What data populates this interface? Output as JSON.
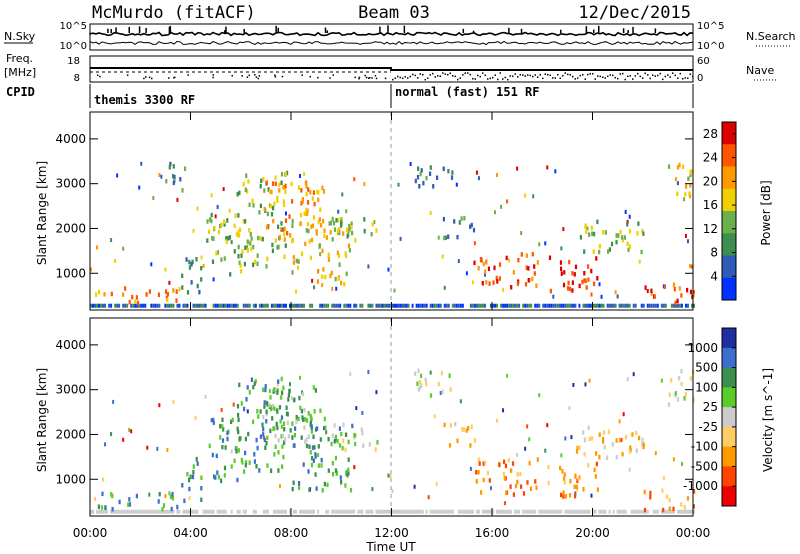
{
  "header": {
    "station": "McMurdo (fitACF)",
    "beam": "Beam 03",
    "date": "12/Dec/2015"
  },
  "summary_panels": {
    "nsky_label": "N.Sky",
    "nsky_ticks": [
      "10^5",
      "10^0"
    ],
    "nsearch_label": "N.Search",
    "nsearch_ticks": [
      "10^5",
      "10^0"
    ],
    "freq_label_1": "Freq.",
    "freq_label_2": "[MHz]",
    "freq_ticks": [
      "18",
      "8"
    ],
    "nave_label": "Nave",
    "nave_ticks": [
      "60",
      "0"
    ],
    "cpid_label": "CPID",
    "cpid_segments": [
      {
        "name": "themis 3300 RF",
        "start_hour": 0,
        "end_hour": 12
      },
      {
        "name": "normal (fast) 151 RF",
        "start_hour": 12,
        "end_hour": 24
      }
    ]
  },
  "chart_data": [
    {
      "type": "heatmap",
      "panel": "power",
      "ylabel": "Slant Range [km]",
      "y_ticks": [
        "1000",
        "2000",
        "3000",
        "4000"
      ],
      "ylim": [
        180,
        4600
      ],
      "xlim": [
        0,
        24
      ],
      "colorbar_label": "Power [dB]",
      "colorbar_ticks": [
        "4",
        "8",
        "12",
        "16",
        "20",
        "24",
        "28"
      ],
      "colorbar_range": [
        0,
        30
      ],
      "colors": [
        "#0033ff",
        "#2e5cb8",
        "#3d8f4f",
        "#6ab04c",
        "#f0d000",
        "#ff9900",
        "#ff5500",
        "#dd0000"
      ],
      "regions": [
        {
          "t0": 0.2,
          "t1": 3.6,
          "r0": 380,
          "r1": 750,
          "level": 22
        },
        {
          "t0": 3.6,
          "t1": 4.4,
          "r0": 500,
          "r1": 1500,
          "level": 10
        },
        {
          "t0": 2.9,
          "t1": 3.8,
          "r0": 2800,
          "r1": 3500,
          "level": 9
        },
        {
          "t0": 4.6,
          "t1": 6.0,
          "r0": 1000,
          "r1": 2400,
          "level": 12
        },
        {
          "t0": 5.8,
          "t1": 7.8,
          "r0": 1200,
          "r1": 3300,
          "level": 14
        },
        {
          "t0": 6.8,
          "t1": 9.3,
          "r0": 1800,
          "r1": 3100,
          "level": 20
        },
        {
          "t0": 8.0,
          "t1": 10.4,
          "r0": 800,
          "r1": 2400,
          "level": 16
        },
        {
          "t0": 9.6,
          "t1": 11.4,
          "r0": 1700,
          "r1": 2300,
          "level": 13
        },
        {
          "t0": 12.9,
          "t1": 14.4,
          "r0": 2900,
          "r1": 3500,
          "level": 11
        },
        {
          "t0": 14.0,
          "t1": 15.4,
          "r0": 1800,
          "r1": 2300,
          "level": 10
        },
        {
          "t0": 15.2,
          "t1": 17.8,
          "r0": 700,
          "r1": 1500,
          "level": 24
        },
        {
          "t0": 18.1,
          "t1": 20.2,
          "r0": 650,
          "r1": 1400,
          "level": 28
        },
        {
          "t0": 19.2,
          "t1": 22.0,
          "r0": 1500,
          "r1": 2200,
          "level": 12
        },
        {
          "t0": 22.0,
          "t1": 24.0,
          "r0": 350,
          "r1": 800,
          "level": 24
        },
        {
          "t0": 23.0,
          "t1": 24.0,
          "r0": 2700,
          "r1": 3500,
          "level": 16
        }
      ]
    },
    {
      "type": "heatmap",
      "panel": "velocity",
      "ylabel": "Slant Range [km]",
      "y_ticks": [
        "1000",
        "2000",
        "3000",
        "4000"
      ],
      "ylim": [
        180,
        4600
      ],
      "xlim": [
        0,
        24
      ],
      "x_ticks": [
        "00:00",
        "04:00",
        "08:00",
        "12:00",
        "16:00",
        "20:00",
        "00:00"
      ],
      "xlabel": "Time UT",
      "colorbar_label": "Velocity [m s^-1]",
      "colorbar_ticks": [
        "1000",
        "500",
        "100",
        "25",
        "-25",
        "-100",
        "-500",
        "-1000"
      ],
      "colors": [
        "#1f2f9f",
        "#3a6ecf",
        "#3d8f4f",
        "#5ccc2a",
        "#cccccc",
        "#ffcc66",
        "#ff9900",
        "#ff4400",
        "#ee0000"
      ],
      "regions": [
        {
          "t0": 0.2,
          "t1": 3.6,
          "r0": 380,
          "r1": 750,
          "level": 2
        },
        {
          "t0": 3.6,
          "t1": 4.4,
          "r0": 500,
          "r1": 1500,
          "level": 2
        },
        {
          "t0": 4.6,
          "t1": 6.0,
          "r0": 1000,
          "r1": 2400,
          "level": 2
        },
        {
          "t0": 5.8,
          "t1": 7.8,
          "r0": 1200,
          "r1": 3300,
          "level": 2
        },
        {
          "t0": 6.8,
          "t1": 9.3,
          "r0": 1800,
          "r1": 3100,
          "level": 3
        },
        {
          "t0": 8.0,
          "t1": 10.4,
          "r0": 800,
          "r1": 2400,
          "level": 2
        },
        {
          "t0": 9.6,
          "t1": 11.4,
          "r0": 1700,
          "r1": 2300,
          "level": 4
        },
        {
          "t0": 12.9,
          "t1": 14.4,
          "r0": 2900,
          "r1": 3500,
          "level": 4
        },
        {
          "t0": 14.0,
          "t1": 15.4,
          "r0": 1800,
          "r1": 2300,
          "level": 5
        },
        {
          "t0": 15.2,
          "t1": 17.8,
          "r0": 700,
          "r1": 1500,
          "level": 6
        },
        {
          "t0": 18.1,
          "t1": 20.2,
          "r0": 650,
          "r1": 1400,
          "level": 6
        },
        {
          "t0": 19.2,
          "t1": 22.0,
          "r0": 1500,
          "r1": 2200,
          "level": 5
        },
        {
          "t0": 22.0,
          "t1": 24.0,
          "r0": 350,
          "r1": 800,
          "level": 6
        },
        {
          "t0": 23.0,
          "t1": 24.0,
          "r0": 2700,
          "r1": 3500,
          "level": 4
        }
      ]
    }
  ]
}
